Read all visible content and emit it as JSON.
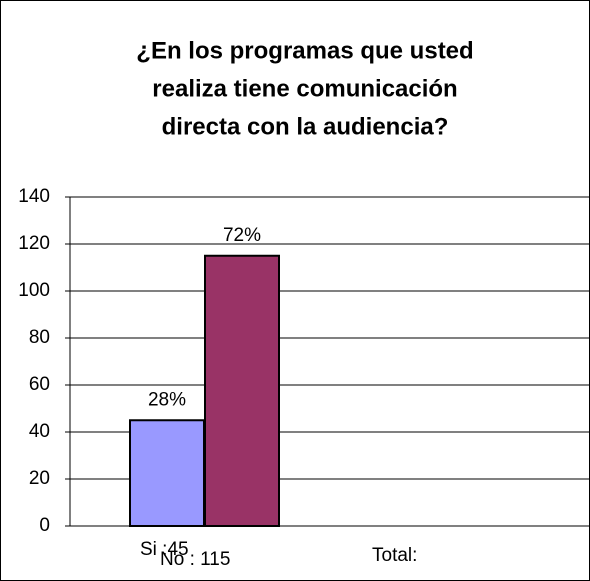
{
  "chart_data": {
    "type": "bar",
    "title": [
      "¿En los programas  que usted",
      "realiza tiene comunicación",
      "directa con la audiencia?"
    ],
    "categories": [
      "Si :45",
      "No : 115",
      "Total:",
      null
    ],
    "values": [
      45,
      115,
      0,
      0
    ],
    "value_labels": [
      "28%",
      "72%",
      null,
      null
    ],
    "colors": [
      "#9999ff",
      "#993366",
      "#9999ff",
      "#993366"
    ],
    "ylim": [
      0,
      140
    ],
    "yticks": [
      0,
      20,
      40,
      60,
      80,
      100,
      120,
      140
    ],
    "grid": true
  }
}
